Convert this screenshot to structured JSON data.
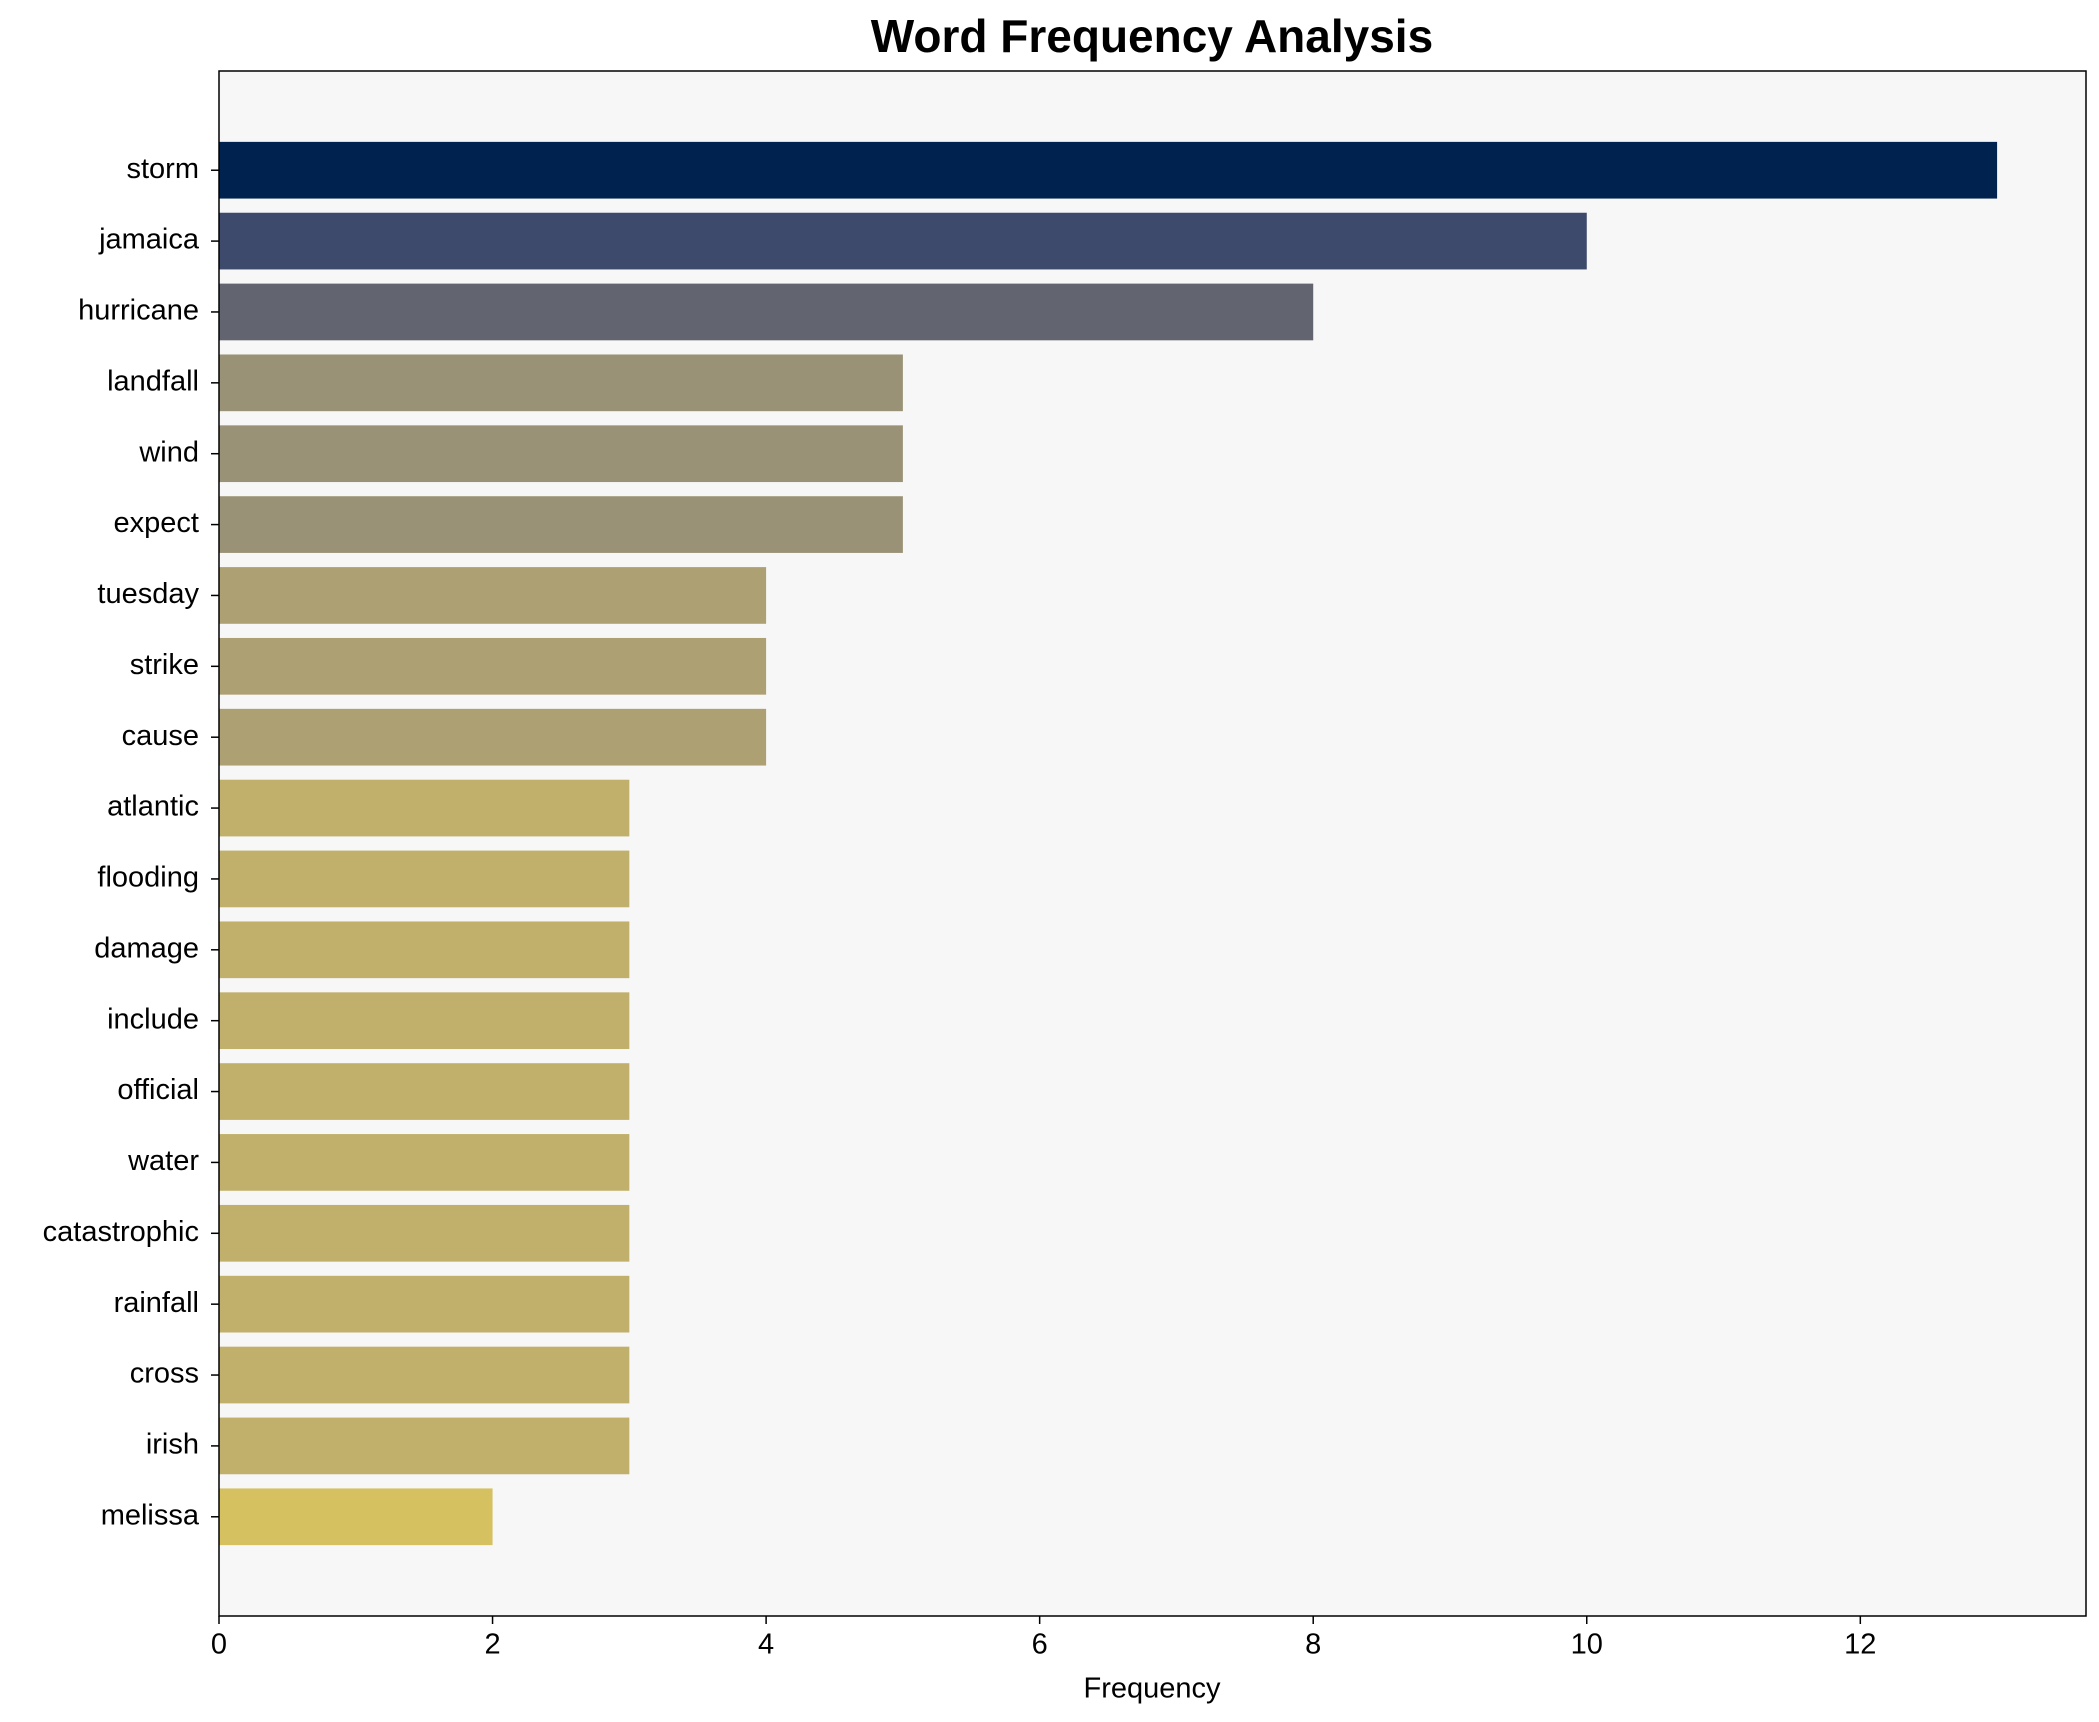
{
  "chart_data": {
    "type": "bar",
    "orientation": "horizontal",
    "title": "Word Frequency Analysis",
    "x_label": "Frequency",
    "categories": [
      "storm",
      "jamaica",
      "hurricane",
      "landfall",
      "wind",
      "expect",
      "tuesday",
      "strike",
      "cause",
      "atlantic",
      "flooding",
      "damage",
      "include",
      "official",
      "water",
      "catastrophic",
      "rainfall",
      "cross",
      "irish",
      "melissa"
    ],
    "values": [
      13,
      10,
      8,
      5,
      5,
      5,
      4,
      4,
      4,
      3,
      3,
      3,
      3,
      3,
      3,
      3,
      3,
      3,
      3,
      2
    ],
    "colors": [
      "#00224e",
      "#3d4a6b",
      "#62646f",
      "#9a9276",
      "#9a9276",
      "#9a9276",
      "#ada073",
      "#ada073",
      "#ada073",
      "#c1b06b",
      "#c1b06b",
      "#c1b06b",
      "#c1b06b",
      "#c1b06b",
      "#c1b06b",
      "#c1b06b",
      "#c1b06b",
      "#c1b06b",
      "#c1b06b",
      "#d5c15f"
    ],
    "xlim": [
      0,
      13.65
    ],
    "xticks": [
      0,
      2,
      4,
      6,
      8,
      10,
      12
    ],
    "grid": false
  }
}
